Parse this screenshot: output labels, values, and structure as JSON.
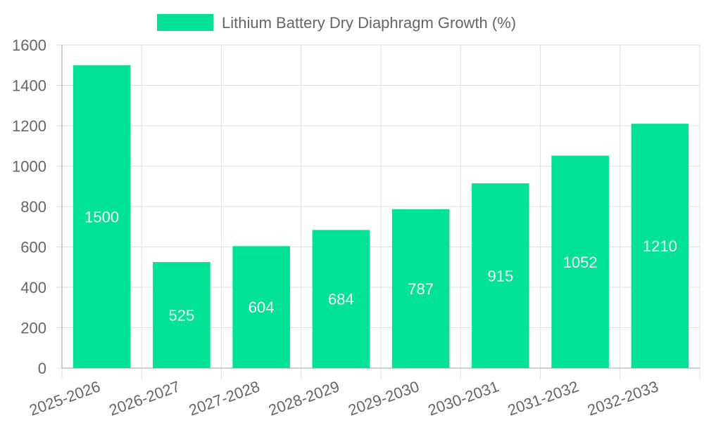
{
  "chart_data": {
    "type": "bar",
    "title": "",
    "xlabel": "",
    "ylabel": "",
    "categories": [
      "2025-2026",
      "2026-2027",
      "2027-2028",
      "2028-2029",
      "2029-2030",
      "2030-2031",
      "2031-2032",
      "2032-2033"
    ],
    "series": [
      {
        "name": "Lithium Battery Dry Diaphragm Growth (%)",
        "values": [
          1500,
          525,
          604,
          684,
          787,
          915,
          1052,
          1210
        ],
        "color": "#00e396"
      }
    ],
    "ylim": [
      0,
      1600
    ],
    "yticks": [
      "0",
      "200",
      "400",
      "600",
      "800",
      "1000",
      "1200",
      "1400",
      "1600"
    ],
    "grid": true,
    "legend_position": "top",
    "data_labels": true,
    "colors": {
      "grid": "#e0e0e0",
      "axis_text": "#666666",
      "label_text": "#ffffff"
    }
  }
}
